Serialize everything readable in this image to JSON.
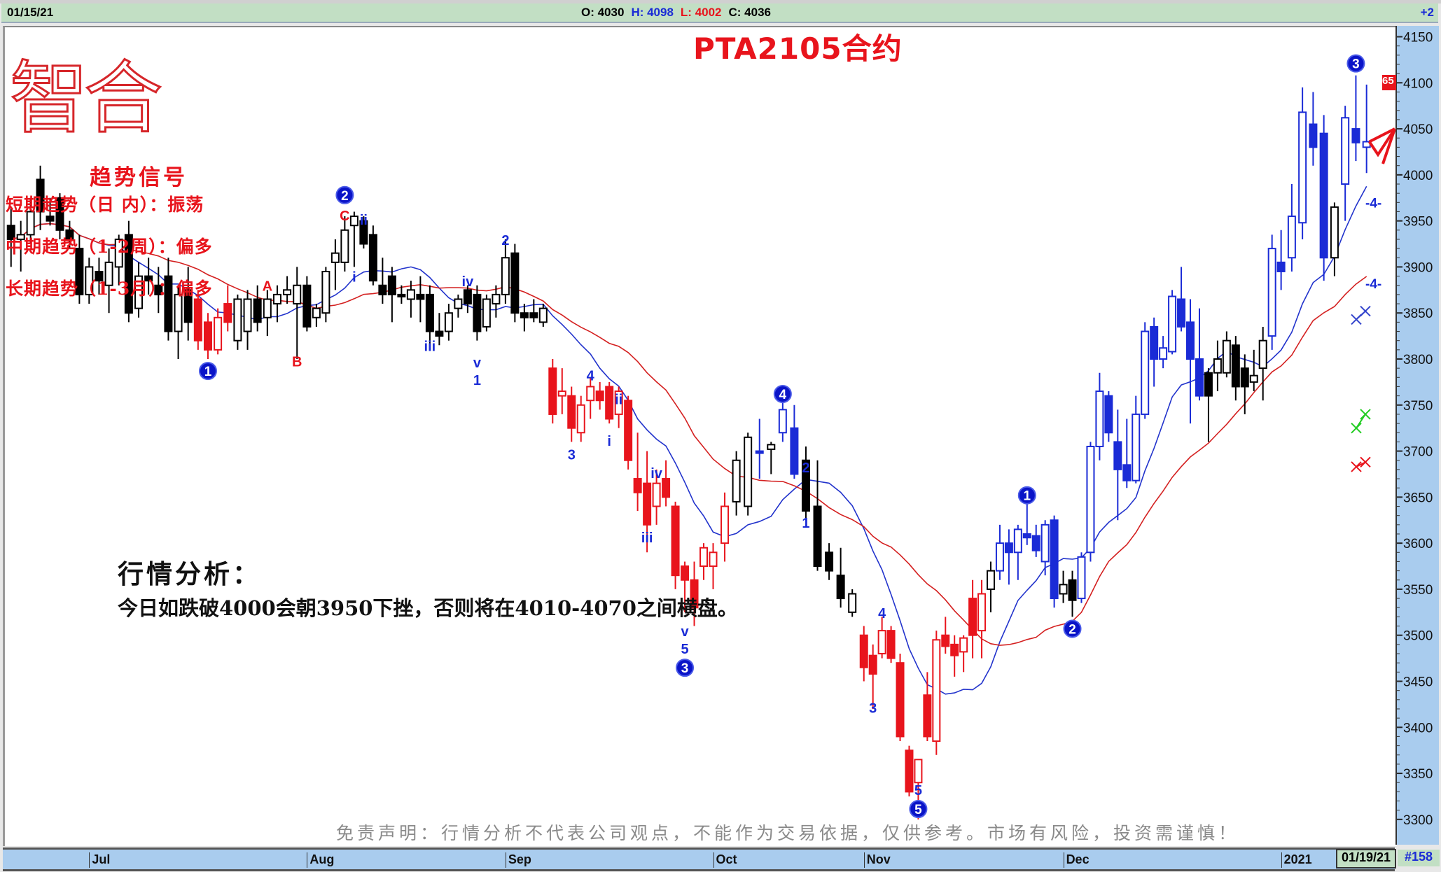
{
  "infobar": {
    "date": "01/15/21",
    "open": "O: 4030",
    "high": "H: 4098",
    "low": "L: 4002",
    "close": "C: 4036",
    "right": "+2"
  },
  "title": "PTA2105合约",
  "logo": "智合",
  "signals": {
    "title": "趋势信号",
    "short": "短期趋势（日 内）：振荡",
    "mid": "中期趋势（1-2周）：偏多",
    "long": "长期趋势（1-3月）：偏多"
  },
  "analysis": {
    "title": "行情分析：",
    "text": "今日如跌破4000会朝3950下挫，否则将在4010-4070之间横盘。"
  },
  "disclaimer": "免责声明：行情分析不代表公司观点，不能作为交易依据，仅供参考。市场有风险，投资需谨慎！",
  "footer": {
    "current_date": "01/19/21",
    "bar_count": "#158"
  },
  "price_badge": "65",
  "colors": {
    "bear_red": "#e8141c",
    "trend_blue": "#1a2bd6",
    "neutral": "#000000",
    "ma_fast": "#2233cc",
    "ma_slow": "#d42020",
    "axis_bg": "#a9ccee",
    "info_bg": "#c2dfc4"
  },
  "chart_data": {
    "type": "candlestick",
    "ylim": [
      3300,
      4150
    ],
    "y_ticks": [
      4150,
      4100,
      4050,
      4000,
      3950,
      3900,
      3850,
      3800,
      3750,
      3700,
      3650,
      3600,
      3550,
      3500,
      3450,
      3400,
      3350,
      3300
    ],
    "month_labels": [
      {
        "text": "Jul",
        "bar": 8
      },
      {
        "text": "Aug",
        "bar": 30
      },
      {
        "text": "Sep",
        "bar": 51
      },
      {
        "text": "Oct",
        "bar": 73
      },
      {
        "text": "Nov",
        "bar": 86
      },
      {
        "text": "Dec",
        "bar": 108
      },
      {
        "text": "2021",
        "bar": 132
      }
    ],
    "ohlc_fields": [
      "open",
      "high",
      "low",
      "close",
      "color"
    ],
    "candles": [
      [
        3945,
        3965,
        3900,
        3930,
        "k"
      ],
      [
        3930,
        3950,
        3895,
        3935,
        "k"
      ],
      [
        3935,
        3975,
        3925,
        3960,
        "k"
      ],
      [
        3995,
        4010,
        3940,
        3960,
        "k"
      ],
      [
        3955,
        3975,
        3945,
        3950,
        "k"
      ],
      [
        3975,
        3980,
        3930,
        3940,
        "k"
      ],
      [
        3940,
        3950,
        3920,
        3930,
        "k"
      ],
      [
        3920,
        3935,
        3860,
        3870,
        "k"
      ],
      [
        3870,
        3910,
        3860,
        3900,
        "k"
      ],
      [
        3895,
        3910,
        3870,
        3885,
        "k"
      ],
      [
        3880,
        3920,
        3850,
        3905,
        "k"
      ],
      [
        3900,
        3935,
        3880,
        3930,
        "k"
      ],
      [
        3935,
        3950,
        3840,
        3850,
        "k"
      ],
      [
        3855,
        3905,
        3845,
        3890,
        "k"
      ],
      [
        3890,
        3910,
        3870,
        3885,
        "k"
      ],
      [
        3880,
        3900,
        3850,
        3870,
        "k"
      ],
      [
        3890,
        3910,
        3820,
        3830,
        "k"
      ],
      [
        3830,
        3880,
        3800,
        3870,
        "k"
      ],
      [
        3875,
        3900,
        3820,
        3840,
        "k"
      ],
      [
        3865,
        3875,
        3810,
        3820,
        "r"
      ],
      [
        3840,
        3850,
        3800,
        3810,
        "r"
      ],
      [
        3810,
        3855,
        3805,
        3845,
        "r"
      ],
      [
        3860,
        3880,
        3830,
        3840,
        "r"
      ],
      [
        3820,
        3870,
        3810,
        3865,
        "k"
      ],
      [
        3830,
        3875,
        3810,
        3865,
        "k"
      ],
      [
        3865,
        3880,
        3830,
        3840,
        "k"
      ],
      [
        3845,
        3875,
        3825,
        3865,
        "k"
      ],
      [
        3860,
        3880,
        3840,
        3870,
        "k"
      ],
      [
        3870,
        3890,
        3860,
        3875,
        "k"
      ],
      [
        3860,
        3900,
        3800,
        3880,
        "k"
      ],
      [
        3880,
        3890,
        3830,
        3835,
        "k"
      ],
      [
        3845,
        3860,
        3835,
        3855,
        "k"
      ],
      [
        3850,
        3900,
        3840,
        3895,
        "k"
      ],
      [
        3905,
        3930,
        3875,
        3915,
        "k"
      ],
      [
        3905,
        3955,
        3895,
        3940,
        "k"
      ],
      [
        3945,
        3960,
        3900,
        3955,
        "k"
      ],
      [
        3950,
        3955,
        3920,
        3925,
        "k"
      ],
      [
        3935,
        3945,
        3880,
        3885,
        "k"
      ],
      [
        3880,
        3910,
        3860,
        3870,
        "k"
      ],
      [
        3890,
        3900,
        3840,
        3870,
        "k"
      ],
      [
        3870,
        3880,
        3860,
        3870,
        "k"
      ],
      [
        3865,
        3885,
        3845,
        3875,
        "k"
      ],
      [
        3870,
        3890,
        3840,
        3865,
        "k"
      ],
      [
        3870,
        3880,
        3810,
        3830,
        "k"
      ],
      [
        3830,
        3850,
        3815,
        3825,
        "k"
      ],
      [
        3830,
        3860,
        3820,
        3850,
        "k"
      ],
      [
        3855,
        3870,
        3845,
        3865,
        "k"
      ],
      [
        3875,
        3880,
        3850,
        3860,
        "k"
      ],
      [
        3870,
        3880,
        3820,
        3830,
        "k"
      ],
      [
        3835,
        3870,
        3830,
        3865,
        "k"
      ],
      [
        3860,
        3880,
        3845,
        3870,
        "k"
      ],
      [
        3870,
        3930,
        3860,
        3910,
        "k"
      ],
      [
        3915,
        3925,
        3840,
        3850,
        "k"
      ],
      [
        3850,
        3860,
        3830,
        3845,
        "k"
      ],
      [
        3850,
        3865,
        3840,
        3845,
        "k"
      ],
      [
        3840,
        3860,
        3835,
        3855,
        "k"
      ],
      [
        3790,
        3800,
        3730,
        3740,
        "r"
      ],
      [
        3760,
        3790,
        3740,
        3765,
        "r"
      ],
      [
        3760,
        3770,
        3710,
        3725,
        "r"
      ],
      [
        3720,
        3760,
        3710,
        3750,
        "r"
      ],
      [
        3755,
        3780,
        3735,
        3770,
        "r"
      ],
      [
        3765,
        3775,
        3745,
        3755,
        "r"
      ],
      [
        3770,
        3775,
        3730,
        3735,
        "r"
      ],
      [
        3740,
        3770,
        3725,
        3765,
        "r"
      ],
      [
        3755,
        3760,
        3680,
        3690,
        "r"
      ],
      [
        3670,
        3720,
        3635,
        3655,
        "r"
      ],
      [
        3665,
        3700,
        3590,
        3620,
        "r"
      ],
      [
        3640,
        3680,
        3620,
        3665,
        "r"
      ],
      [
        3670,
        3690,
        3640,
        3650,
        "r"
      ],
      [
        3640,
        3645,
        3550,
        3565,
        "r"
      ],
      [
        3575,
        3580,
        3525,
        3560,
        "r"
      ],
      [
        3560,
        3580,
        3510,
        3530,
        "r"
      ],
      [
        3575,
        3600,
        3560,
        3595,
        "r"
      ],
      [
        3575,
        3600,
        3550,
        3590,
        "r"
      ],
      [
        3600,
        3655,
        3580,
        3640,
        "r"
      ],
      [
        3645,
        3700,
        3630,
        3690,
        "k"
      ],
      [
        3640,
        3720,
        3630,
        3715,
        "k"
      ],
      [
        3700,
        3735,
        3670,
        3700,
        "b"
      ],
      [
        3702,
        3710,
        3675,
        3707,
        "k"
      ],
      [
        3720,
        3760,
        3710,
        3745,
        "b"
      ],
      [
        3725,
        3750,
        3670,
        3675,
        "b"
      ],
      [
        3690,
        3705,
        3625,
        3635,
        "k"
      ],
      [
        3640,
        3690,
        3570,
        3575,
        "k"
      ],
      [
        3590,
        3600,
        3560,
        3570,
        "k"
      ],
      [
        3565,
        3595,
        3530,
        3540,
        "k"
      ],
      [
        3525,
        3550,
        3520,
        3545,
        "k"
      ],
      [
        3500,
        3510,
        3450,
        3465,
        "r"
      ],
      [
        3478,
        3490,
        3420,
        3458,
        "r"
      ],
      [
        3480,
        3520,
        3475,
        3505,
        "r"
      ],
      [
        3505,
        3510,
        3470,
        3475,
        "r"
      ],
      [
        3470,
        3480,
        3385,
        3390,
        "r"
      ],
      [
        3375,
        3380,
        3325,
        3330,
        "r"
      ],
      [
        3340,
        3365,
        3300,
        3365,
        "r"
      ],
      [
        3435,
        3460,
        3385,
        3390,
        "r"
      ],
      [
        3385,
        3505,
        3370,
        3495,
        "r"
      ],
      [
        3500,
        3520,
        3480,
        3488,
        "r"
      ],
      [
        3490,
        3500,
        3455,
        3478,
        "r"
      ],
      [
        3482,
        3500,
        3460,
        3497,
        "r"
      ],
      [
        3540,
        3560,
        3475,
        3500,
        "r"
      ],
      [
        3505,
        3560,
        3475,
        3545,
        "r"
      ],
      [
        3550,
        3580,
        3525,
        3570,
        "k"
      ],
      [
        3570,
        3620,
        3560,
        3600,
        "b"
      ],
      [
        3600,
        3615,
        3555,
        3590,
        "b"
      ],
      [
        3590,
        3620,
        3560,
        3615,
        "b"
      ],
      [
        3610,
        3645,
        3598,
        3606,
        "b"
      ],
      [
        3608,
        3620,
        3585,
        3592,
        "b"
      ],
      [
        3580,
        3625,
        3565,
        3620,
        "b"
      ],
      [
        3625,
        3630,
        3530,
        3540,
        "b"
      ],
      [
        3545,
        3570,
        3535,
        3555,
        "k"
      ],
      [
        3560,
        3570,
        3520,
        3538,
        "k"
      ],
      [
        3540,
        3590,
        3535,
        3585,
        "b"
      ],
      [
        3590,
        3710,
        3580,
        3705,
        "b"
      ],
      [
        3705,
        3785,
        3690,
        3765,
        "b"
      ],
      [
        3760,
        3765,
        3710,
        3720,
        "b"
      ],
      [
        3710,
        3745,
        3625,
        3680,
        "b"
      ],
      [
        3685,
        3735,
        3660,
        3668,
        "b"
      ],
      [
        3668,
        3760,
        3665,
        3740,
        "b"
      ],
      [
        3740,
        3840,
        3735,
        3830,
        "b"
      ],
      [
        3835,
        3845,
        3770,
        3800,
        "b"
      ],
      [
        3800,
        3825,
        3790,
        3812,
        "b"
      ],
      [
        3808,
        3875,
        3805,
        3868,
        "b"
      ],
      [
        3865,
        3900,
        3830,
        3835,
        "b"
      ],
      [
        3840,
        3865,
        3730,
        3800,
        "b"
      ],
      [
        3800,
        3855,
        3755,
        3760,
        "b"
      ],
      [
        3785,
        3790,
        3710,
        3760,
        "k"
      ],
      [
        3785,
        3820,
        3765,
        3800,
        "k"
      ],
      [
        3785,
        3830,
        3780,
        3820,
        "k"
      ],
      [
        3815,
        3825,
        3755,
        3770,
        "k"
      ],
      [
        3790,
        3805,
        3740,
        3770,
        "k"
      ],
      [
        3775,
        3810,
        3765,
        3782,
        "k"
      ],
      [
        3790,
        3835,
        3755,
        3820,
        "k"
      ],
      [
        3825,
        3935,
        3810,
        3920,
        "b"
      ],
      [
        3905,
        3940,
        3875,
        3895,
        "b"
      ],
      [
        3910,
        3990,
        3895,
        3955,
        "b"
      ],
      [
        3948,
        4095,
        3930,
        4068,
        "b"
      ],
      [
        4055,
        4090,
        4010,
        4030,
        "b"
      ],
      [
        4045,
        4065,
        3885,
        3910,
        "b"
      ],
      [
        3910,
        3970,
        3890,
        3965,
        "k"
      ],
      [
        3990,
        4075,
        3950,
        4062,
        "b"
      ],
      [
        4050,
        4108,
        4015,
        4035,
        "b"
      ],
      [
        4030,
        4098,
        4002,
        4036,
        "b"
      ]
    ],
    "moving_averages": [
      {
        "color": "#2233cc",
        "period": 10
      },
      {
        "color": "#d42020",
        "period": 20
      }
    ],
    "wave_labels": [
      {
        "text": "1",
        "bar": 20,
        "price": 3787,
        "style": "circle"
      },
      {
        "text": "A",
        "bar": 26,
        "price": 3880,
        "color": "#e8141c"
      },
      {
        "text": "B",
        "bar": 29,
        "price": 3798,
        "color": "#e8141c"
      },
      {
        "text": "2",
        "bar": 34,
        "price": 3978,
        "style": "circle"
      },
      {
        "text": "C",
        "bar": 34,
        "price": 3960,
        "color": "#e8141c"
      },
      {
        "text": "i",
        "bar": 35,
        "price": 3890,
        "color": "#1a2bd6"
      },
      {
        "text": "ii",
        "bar": 36,
        "price": 3952,
        "color": "#1a2bd6"
      },
      {
        "text": "iii",
        "bar": 43,
        "price": 3815,
        "color": "#1a2bd6"
      },
      {
        "text": "iv",
        "bar": 47,
        "price": 3885,
        "color": "#1a2bd6"
      },
      {
        "text": "v",
        "bar": 48,
        "price": 3797,
        "color": "#1a2bd6"
      },
      {
        "text": "1",
        "bar": 48,
        "price": 3782,
        "color": "#1a2bd6"
      },
      {
        "text": "2",
        "bar": 51,
        "price": 3930,
        "color": "#1a2bd6"
      },
      {
        "text": "3",
        "bar": 58,
        "price": 3697,
        "color": "#1a2bd6"
      },
      {
        "text": "4",
        "bar": 60,
        "price": 3783,
        "color": "#1a2bd6"
      },
      {
        "text": "i",
        "bar": 62,
        "price": 3712,
        "color": "#1a2bd6"
      },
      {
        "text": "ii",
        "bar": 63,
        "price": 3757,
        "color": "#1a2bd6"
      },
      {
        "text": "iii",
        "bar": 66,
        "price": 3607,
        "color": "#1a2bd6"
      },
      {
        "text": "iv",
        "bar": 67,
        "price": 3677,
        "color": "#1a2bd6"
      },
      {
        "text": "v",
        "bar": 70,
        "price": 3505,
        "color": "#1a2bd6"
      },
      {
        "text": "5",
        "bar": 70,
        "price": 3490,
        "color": "#1a2bd6"
      },
      {
        "text": "3",
        "bar": 70,
        "price": 3474,
        "style": "circle"
      },
      {
        "text": "4",
        "bar": 79,
        "price": 3762,
        "style": "circle"
      },
      {
        "text": "2",
        "bar": 81,
        "price": 3683,
        "color": "#1a2bd6"
      },
      {
        "text": "1",
        "bar": 81,
        "price": 3623,
        "color": "#1a2bd6"
      },
      {
        "text": "3",
        "bar": 87,
        "price": 3422,
        "color": "#1a2bd6"
      },
      {
        "text": "4",
        "bar": 88,
        "price": 3525,
        "color": "#1a2bd6"
      },
      {
        "text": "5",
        "bar": 92,
        "price": 3316,
        "color": "#1a2bd6"
      },
      {
        "text": "5",
        "bar": 92,
        "price": 3298,
        "style": "circle"
      },
      {
        "text": "1",
        "bar": 104,
        "price": 3652,
        "style": "circle"
      },
      {
        "text": "2",
        "bar": 109,
        "price": 3507,
        "style": "circle"
      },
      {
        "text": "3",
        "bar": 139,
        "price": 4121,
        "style": "circle"
      }
    ],
    "side_marks": [
      {
        "text": "-4-",
        "price": 3970,
        "color": "#1a2bd6"
      },
      {
        "text": "-4-",
        "price": 3882,
        "color": "#1a2bd6"
      }
    ]
  }
}
